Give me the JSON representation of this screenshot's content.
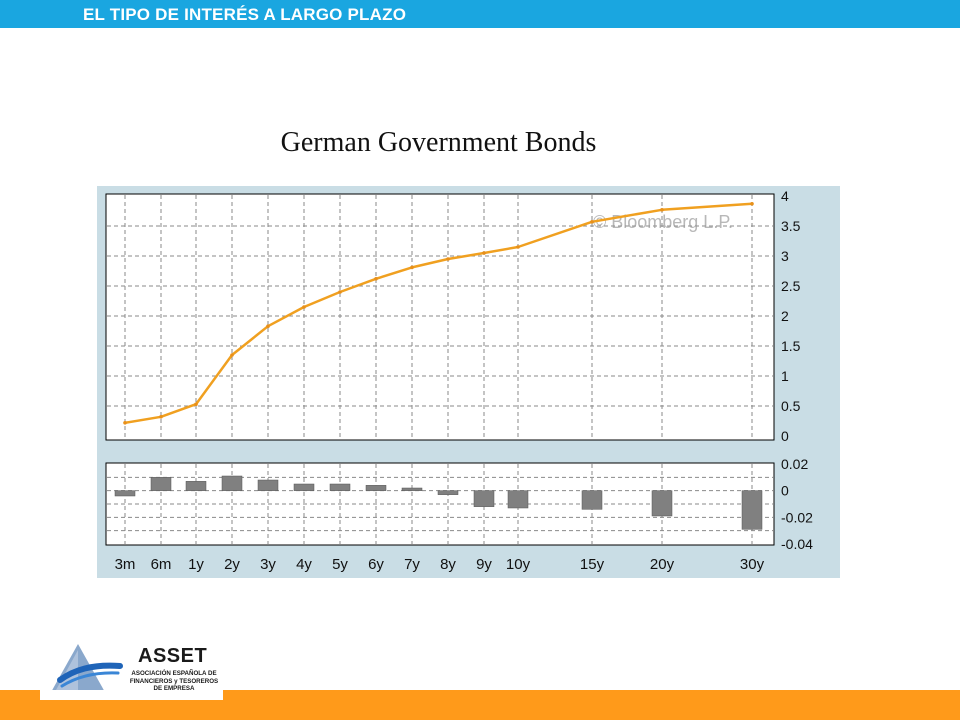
{
  "header": {
    "title": "EL TIPO DE INTERÉS A LARGO PLAZO"
  },
  "chart_title": "German Government Bonds",
  "watermark": "© Bloomberg L.P.",
  "logo": {
    "name": "ASSET",
    "subtitle_lines": [
      "ASOCIACIÓN ESPAÑOLA DE",
      "FINANCIEROS y TESOREROS",
      "DE EMPRESA"
    ]
  },
  "colors": {
    "header_bar": "#1aa6e0",
    "footer_bar": "#ff9a1a",
    "chart_bg": "#c9dde5",
    "line": "#f0a020",
    "bars": "#808080"
  },
  "chart_data": [
    {
      "type": "line",
      "title": "German Government Bonds",
      "categories": [
        "3m",
        "6m",
        "1y",
        "2y",
        "3y",
        "4y",
        "5y",
        "6y",
        "7y",
        "8y",
        "9y",
        "10y",
        "15y",
        "20y",
        "30y"
      ],
      "x_years": [
        0.25,
        0.5,
        1,
        2,
        3,
        4,
        5,
        6,
        7,
        8,
        9,
        10,
        15,
        20,
        30
      ],
      "values": [
        0.22,
        0.32,
        0.53,
        1.35,
        1.83,
        2.15,
        2.4,
        2.62,
        2.81,
        2.95,
        3.05,
        3.15,
        3.57,
        3.77,
        3.87
      ],
      "ylim": [
        0,
        4
      ],
      "yticks": [
        "0",
        "0.5",
        "1",
        "1.5",
        "2",
        "2.5",
        "3",
        "3.5",
        "4"
      ],
      "grid": true
    },
    {
      "type": "bar",
      "categories": [
        "3m",
        "6m",
        "1y",
        "2y",
        "3y",
        "4y",
        "5y",
        "6y",
        "7y",
        "8y",
        "9y",
        "10y",
        "15y",
        "20y",
        "30y"
      ],
      "values": [
        -0.004,
        0.01,
        0.007,
        0.011,
        0.008,
        0.005,
        0.005,
        0.004,
        0.002,
        -0.003,
        -0.012,
        -0.013,
        -0.014,
        -0.019,
        -0.029
      ],
      "ylim": [
        -0.04,
        0.02
      ],
      "yticks": [
        "0.02",
        "0",
        "-0.02",
        "-0.04"
      ],
      "grid": true
    }
  ]
}
